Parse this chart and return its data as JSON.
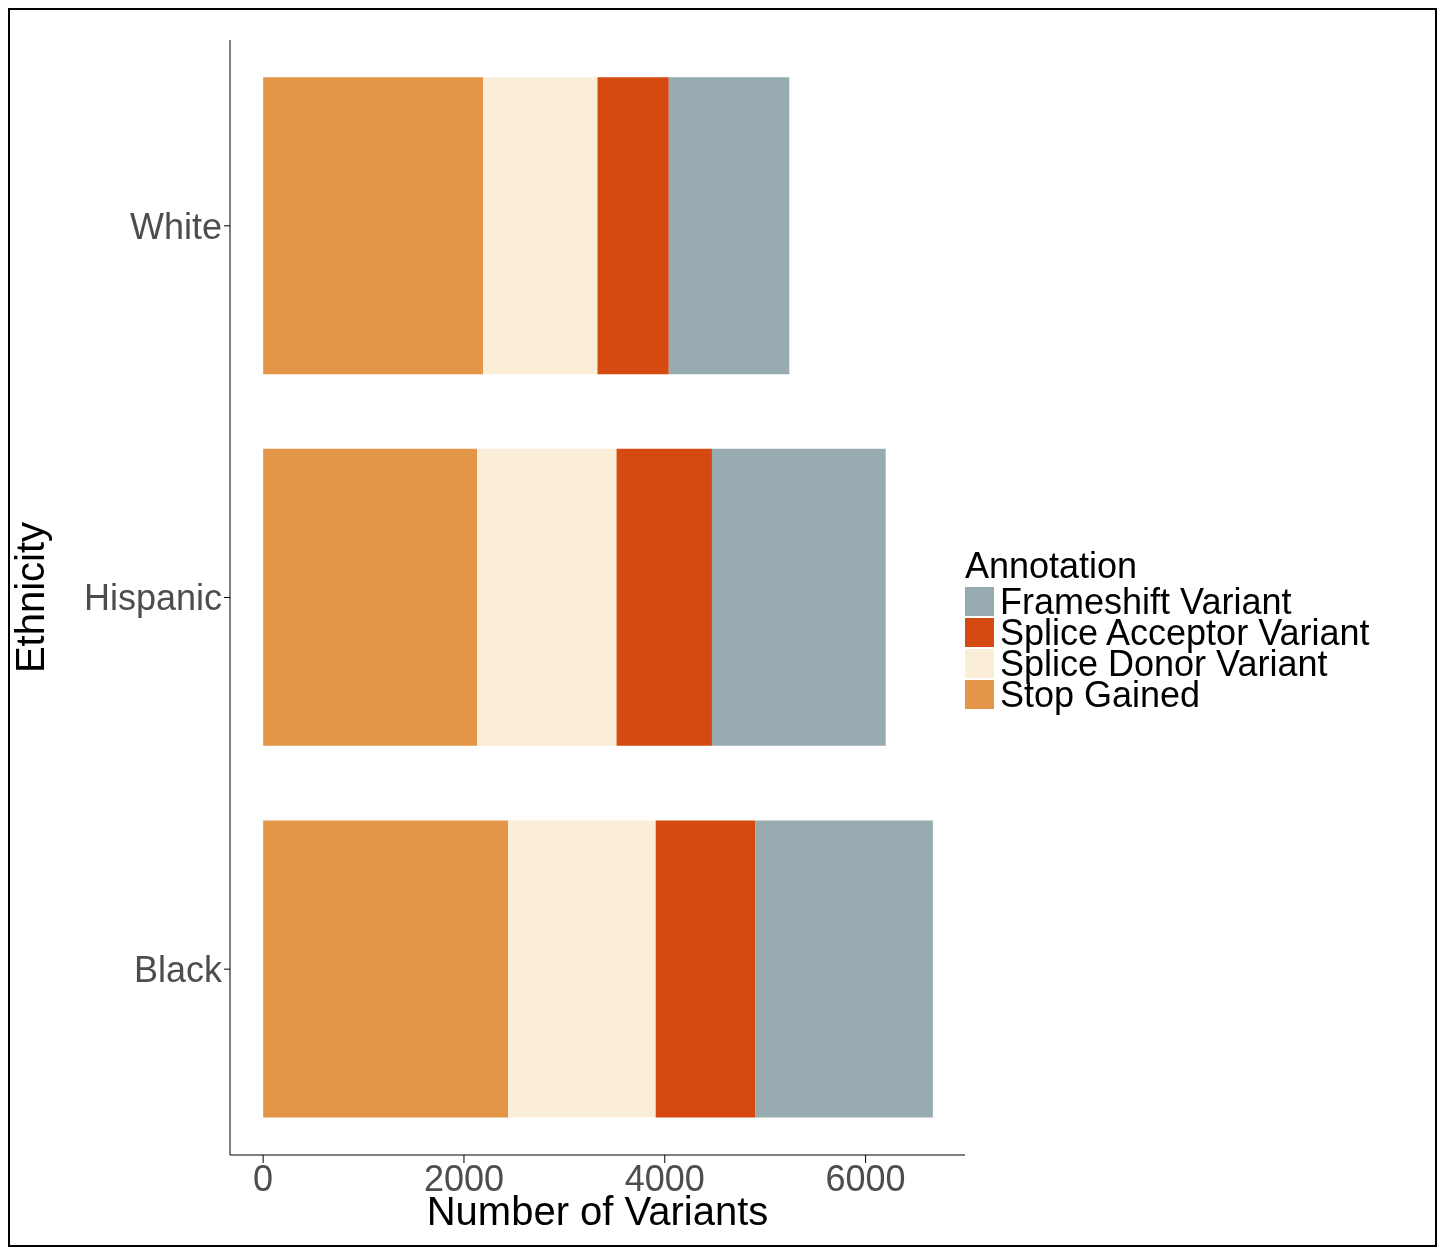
{
  "chart_data": {
    "type": "bar",
    "orientation": "horizontal",
    "stacked": true,
    "xlabel": "Number of Variants",
    "ylabel": "Ethnicity",
    "legend_title": "Annotation",
    "legend": "right",
    "categories": [
      "White",
      "Hispanic",
      "Black"
    ],
    "series": [
      {
        "name": "Stop Gained",
        "color": "#e39647",
        "values": [
          2190,
          2130,
          2440
        ]
      },
      {
        "name": "Splice Donor Variant",
        "color": "#faeed8",
        "values": [
          1140,
          1390,
          1470
        ]
      },
      {
        "name": "Splice Acceptor Variant",
        "color": "#d44a11",
        "values": [
          710,
          950,
          990
        ]
      },
      {
        "name": "Frameshift Variant",
        "color": "#98abb1",
        "values": [
          1200,
          1730,
          1770
        ]
      }
    ],
    "xlim": [
      -330,
      6990
    ],
    "xticks": [
      0,
      2000,
      4000,
      6000
    ]
  }
}
